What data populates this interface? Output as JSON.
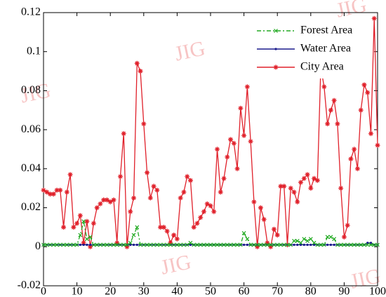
{
  "chart_data": {
    "type": "line",
    "watermark": "JIG",
    "x": [
      0,
      1,
      2,
      3,
      4,
      5,
      6,
      7,
      8,
      9,
      10,
      11,
      12,
      13,
      14,
      15,
      16,
      17,
      18,
      19,
      20,
      21,
      22,
      23,
      24,
      25,
      26,
      27,
      28,
      29,
      30,
      31,
      32,
      33,
      34,
      35,
      36,
      37,
      38,
      39,
      40,
      41,
      42,
      43,
      44,
      45,
      46,
      47,
      48,
      49,
      50,
      51,
      52,
      53,
      54,
      55,
      56,
      57,
      58,
      59,
      60,
      61,
      62,
      63,
      64,
      65,
      66,
      67,
      68,
      69,
      70,
      71,
      72,
      73,
      74,
      75,
      76,
      77,
      78,
      79,
      80,
      81,
      82,
      83,
      84,
      85,
      86,
      87,
      88,
      89,
      90,
      91,
      92,
      93,
      94,
      95,
      96,
      97,
      98,
      99,
      100
    ],
    "series": [
      {
        "name": "Forest Area",
        "color": "#22aa22",
        "marker": "x",
        "dash": "dashdot",
        "values": [
          0.001,
          0.001,
          0.001,
          0.001,
          0.001,
          0.001,
          0.001,
          0.001,
          0.001,
          0.001,
          0.001,
          0.006,
          0.013,
          0.004,
          0.005,
          0.001,
          0.001,
          0.001,
          0.001,
          0.001,
          0.001,
          0.001,
          0.001,
          0.001,
          0.001,
          0.001,
          0.002,
          0.006,
          0.01,
          0.001,
          0.001,
          0.001,
          0.001,
          0.001,
          0.001,
          0.001,
          0.001,
          0.001,
          0.001,
          0.001,
          0.001,
          0.001,
          0.001,
          0.001,
          0.002,
          0.001,
          0.001,
          0.001,
          0.001,
          0.001,
          0.001,
          0.001,
          0.001,
          0.001,
          0.001,
          0.001,
          0.001,
          0.001,
          0.001,
          0.001,
          0.007,
          0.004,
          0.001,
          0.001,
          0.001,
          0.001,
          0.001,
          0.001,
          0.001,
          0.001,
          0.001,
          0.001,
          0.001,
          0.001,
          0.001,
          0.003,
          0.003,
          0.002,
          0.004,
          0.003,
          0.004,
          0.002,
          0.001,
          0.001,
          0.001,
          0.005,
          0.005,
          0.004,
          0.001,
          0.001,
          0.001,
          0.001,
          0.001,
          0.001,
          0.001,
          0.001,
          0.001,
          0.001,
          0.001,
          0.001,
          0.001
        ]
      },
      {
        "name": "Water Area",
        "color": "#1a1a8c",
        "marker": "dot",
        "dash": "solid",
        "values": [
          0.001,
          0.001,
          0.001,
          0.001,
          0.001,
          0.001,
          0.001,
          0.001,
          0.001,
          0.001,
          0.001,
          0.001,
          0.001,
          0.001,
          0.001,
          0.001,
          0.001,
          0.001,
          0.001,
          0.001,
          0.001,
          0.001,
          0.001,
          0.001,
          0.001,
          0.001,
          0.001,
          0.001,
          0.001,
          0.001,
          0.001,
          0.001,
          0.001,
          0.001,
          0.001,
          0.001,
          0.001,
          0.001,
          0.001,
          0.001,
          0.001,
          0.001,
          0.001,
          0.001,
          0.001,
          0.001,
          0.001,
          0.001,
          0.001,
          0.001,
          0.001,
          0.001,
          0.001,
          0.001,
          0.001,
          0.001,
          0.001,
          0.001,
          0.001,
          0.001,
          0.001,
          0.001,
          0.001,
          0.001,
          0.001,
          0.001,
          0.001,
          0.001,
          0.001,
          0.001,
          0.001,
          0.001,
          0.001,
          0.001,
          0.001,
          0.001,
          0.001,
          0.001,
          0.001,
          0.001,
          0.001,
          0.001,
          0.001,
          0.001,
          0.001,
          0.001,
          0.001,
          0.001,
          0.001,
          0.001,
          0.001,
          0.001,
          0.001,
          0.001,
          0.001,
          0.001,
          0.001,
          0.002,
          0.002,
          0.001,
          0.001
        ]
      },
      {
        "name": "City Area",
        "color": "#e0202a",
        "marker": "star",
        "dash": "solid",
        "values": [
          0.029,
          0.028,
          0.027,
          0.027,
          0.029,
          0.029,
          0.01,
          0.028,
          0.037,
          0.01,
          0.012,
          0.016,
          0.002,
          0.013,
          0.0,
          0.012,
          0.02,
          0.022,
          0.024,
          0.024,
          0.023,
          0.024,
          0.002,
          0.036,
          0.058,
          0.0,
          0.018,
          0.025,
          0.094,
          0.09,
          0.063,
          0.038,
          0.025,
          0.031,
          0.029,
          0.01,
          0.01,
          0.008,
          0.002,
          0.006,
          0.004,
          0.025,
          0.028,
          0.036,
          0.034,
          0.01,
          0.012,
          0.015,
          0.018,
          0.022,
          0.021,
          0.018,
          0.05,
          0.028,
          0.035,
          0.046,
          0.055,
          0.053,
          0.04,
          0.071,
          0.057,
          0.082,
          0.054,
          0.023,
          0.0,
          0.02,
          0.014,
          0.002,
          0.0,
          0.009,
          0.006,
          0.031,
          0.031,
          0.001,
          0.03,
          0.028,
          0.023,
          0.033,
          0.035,
          0.037,
          0.03,
          0.035,
          0.034,
          0.092,
          0.082,
          0.063,
          0.07,
          0.075,
          0.063,
          0.03,
          0.005,
          0.011,
          0.045,
          0.05,
          0.04,
          0.07,
          0.083,
          0.079,
          0.058,
          0.117,
          0.052
        ]
      }
    ],
    "xlim": [
      0,
      100
    ],
    "xticks": [
      0,
      10,
      20,
      30,
      40,
      50,
      60,
      70,
      80,
      90,
      100
    ],
    "ylim": [
      -0.02,
      0.12
    ],
    "yticks": [
      -0.02,
      0,
      0.02,
      0.04,
      0.06,
      0.08,
      0.1,
      0.12
    ],
    "grid": false,
    "legend": "upper right"
  }
}
